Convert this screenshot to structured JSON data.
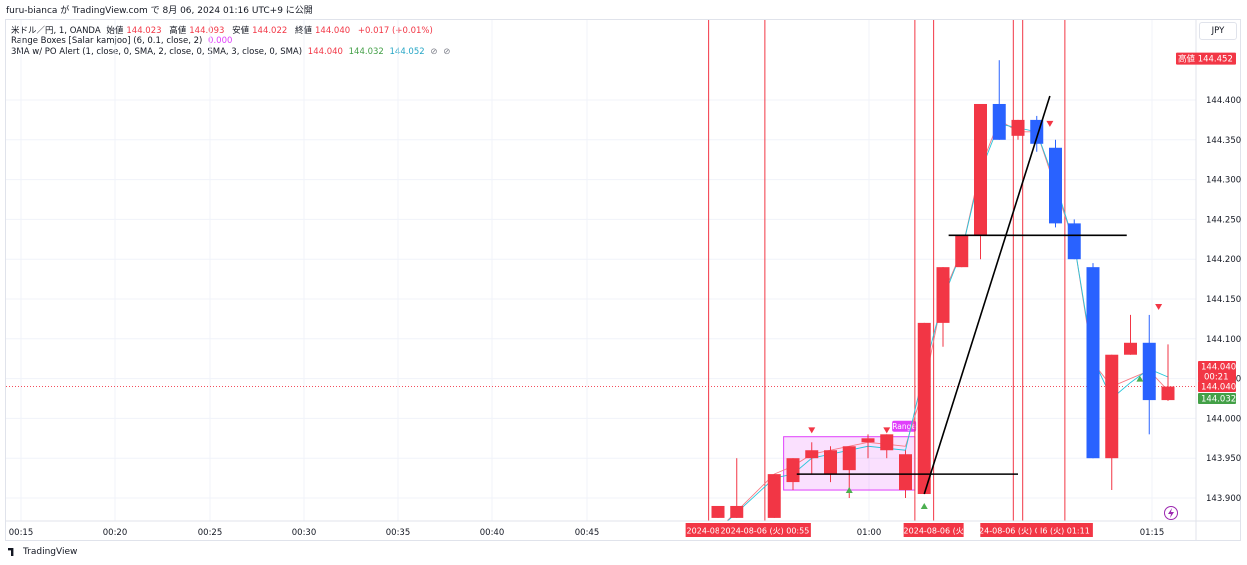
{
  "header": {
    "publish_line": "furu-bianca が TradingView.com で 8月 06, 2024 01:16 UTC+9 に公開"
  },
  "legend": {
    "main": {
      "label": "米ドル／円, 1, OANDA",
      "open_label": "始値",
      "open": "144.023",
      "high_label": "高値",
      "high": "144.093",
      "low_label": "安値",
      "low": "144.022",
      "close_label": "終値",
      "close": "144.040",
      "change": "+0.017 (+0.01%)"
    },
    "indicator1": {
      "label": "Range Boxes [Salar kamjoo] (6, 0.1, close, 2)",
      "value": "0.000"
    },
    "indicator2": {
      "label": "3MA w/ PO Alert (1, close, 0, SMA, 2, close, 0, SMA, 3, close, 0, SMA)",
      "v1": "144.040",
      "v2": "144.032",
      "v3": "144.052"
    }
  },
  "currency": "JPY",
  "footer": {
    "brand": "TradingView"
  },
  "colors": {
    "up": "#2962ff",
    "down": "#f23645",
    "ma_teal": "#26c6da",
    "range_box": "#e040fb",
    "signal_up": "#4caf50",
    "signal_down": "#f23645"
  },
  "chart_data": {
    "type": "candlestick",
    "symbol": "USDJPY",
    "timeframe": "1",
    "x_ticks": [
      "00:15",
      "00:20",
      "00:25",
      "00:30",
      "00:35",
      "00:40",
      "00:45",
      "01:00",
      "01:15"
    ],
    "y_ticks": [
      "143.900",
      "143.950",
      "144.000",
      "144.050",
      "144.100",
      "144.150",
      "144.200",
      "144.250",
      "144.300",
      "144.350",
      "144.400"
    ],
    "ylim": [
      143.875,
      144.48
    ],
    "candles": [
      {
        "idx": 0,
        "open": 143.875,
        "high": 143.89,
        "low": 143.875,
        "close": 143.89
      },
      {
        "idx": 1,
        "open": 143.875,
        "high": 143.95,
        "low": 143.875,
        "close": 143.89
      },
      {
        "idx": 3,
        "open": 143.875,
        "high": 143.93,
        "low": 143.875,
        "close": 143.93
      },
      {
        "idx": 4,
        "open": 143.92,
        "high": 143.95,
        "low": 143.91,
        "close": 143.95
      },
      {
        "idx": 5,
        "open": 143.95,
        "high": 143.97,
        "low": 143.93,
        "close": 143.96
      },
      {
        "idx": 6,
        "open": 143.93,
        "high": 143.965,
        "low": 143.92,
        "close": 143.96
      },
      {
        "idx": 7,
        "open": 143.935,
        "high": 143.965,
        "low": 143.9,
        "close": 143.965
      },
      {
        "idx": 8,
        "open": 143.97,
        "high": 143.98,
        "low": 143.95,
        "close": 143.975
      },
      {
        "idx": 9,
        "open": 143.96,
        "high": 143.98,
        "low": 143.95,
        "close": 143.98
      },
      {
        "idx": 10,
        "open": 143.91,
        "high": 143.96,
        "low": 143.9,
        "close": 143.955
      },
      {
        "idx": 11,
        "open": 143.905,
        "high": 144.12,
        "low": 143.905,
        "close": 144.12
      },
      {
        "idx": 12,
        "open": 144.12,
        "high": 144.19,
        "low": 144.09,
        "close": 144.19
      },
      {
        "idx": 13,
        "open": 144.19,
        "high": 144.23,
        "low": 144.19,
        "close": 144.23
      },
      {
        "idx": 14,
        "open": 144.23,
        "high": 144.395,
        "low": 144.2,
        "close": 144.395
      },
      {
        "idx": 15,
        "open": 144.395,
        "high": 144.45,
        "low": 144.35,
        "close": 144.35
      },
      {
        "idx": 16,
        "open": 144.355,
        "high": 144.375,
        "low": 144.35,
        "close": 144.375
      },
      {
        "idx": 17,
        "open": 144.375,
        "high": 144.38,
        "low": 144.335,
        "close": 144.345
      },
      {
        "idx": 18,
        "open": 144.34,
        "high": 144.35,
        "low": 144.24,
        "close": 144.245
      },
      {
        "idx": 19,
        "open": 144.245,
        "high": 144.25,
        "low": 144.2,
        "close": 144.2
      },
      {
        "idx": 20,
        "open": 144.19,
        "high": 144.195,
        "low": 143.95,
        "close": 143.95
      },
      {
        "idx": 21,
        "open": 143.95,
        "high": 144.08,
        "low": 143.91,
        "close": 144.08
      },
      {
        "idx": 22,
        "open": 144.08,
        "high": 144.13,
        "low": 144.08,
        "close": 144.095
      },
      {
        "idx": 23,
        "open": 144.095,
        "high": 144.13,
        "low": 143.98,
        "close": 144.023
      },
      {
        "idx": 24,
        "open": 144.023,
        "high": 144.093,
        "low": 144.022,
        "close": 144.04
      }
    ],
    "ma_teal": [
      [
        0,
        143.86
      ],
      [
        3,
        143.925
      ],
      [
        4,
        143.93
      ],
      [
        5,
        143.95
      ],
      [
        6,
        143.955
      ],
      [
        8,
        143.965
      ],
      [
        10,
        143.96
      ],
      [
        11,
        144.06
      ],
      [
        12,
        144.15
      ],
      [
        13,
        144.21
      ],
      [
        14,
        144.31
      ],
      [
        15,
        144.37
      ],
      [
        16,
        144.365
      ],
      [
        17,
        144.36
      ],
      [
        18,
        144.295
      ],
      [
        19,
        144.22
      ],
      [
        20,
        144.075
      ],
      [
        21,
        144.025
      ],
      [
        22,
        144.045
      ],
      [
        23,
        144.062
      ],
      [
        24,
        144.052
      ]
    ],
    "ma_red": [
      [
        0,
        143.86
      ],
      [
        3,
        143.93
      ],
      [
        4,
        143.94
      ],
      [
        5,
        143.955
      ],
      [
        6,
        143.96
      ],
      [
        8,
        143.97
      ],
      [
        10,
        143.965
      ],
      [
        11,
        144.04
      ],
      [
        12,
        144.155
      ],
      [
        13,
        144.21
      ],
      [
        14,
        144.315
      ],
      [
        15,
        144.375
      ],
      [
        16,
        144.36
      ],
      [
        17,
        144.36
      ],
      [
        18,
        144.29
      ],
      [
        19,
        144.22
      ],
      [
        20,
        144.07
      ],
      [
        21,
        144.04
      ],
      [
        22,
        144.05
      ],
      [
        23,
        144.06
      ],
      [
        24,
        144.035
      ]
    ],
    "range_box": {
      "label": "Range",
      "from_idx": 3.5,
      "to_idx": 10.5,
      "top": 143.977,
      "bottom": 143.91
    },
    "current_price_line": 144.04,
    "vertical_markers_idx": [
      -0.5,
      2.5,
      10.5,
      11.5,
      15.75,
      16.25,
      18.5
    ],
    "trendlines": [
      {
        "from": [
          4.2,
          143.93
        ],
        "to": [
          16,
          143.93
        ]
      },
      {
        "from": [
          11,
          143.905
        ],
        "to": [
          17.7,
          144.405
        ]
      },
      {
        "from": [
          12.3,
          144.23
        ],
        "to": [
          21.8,
          144.23
        ]
      }
    ],
    "signals": [
      {
        "idx": 5,
        "dir": "down",
        "price": 143.985
      },
      {
        "idx": 9,
        "dir": "down",
        "price": 143.985
      },
      {
        "idx": 7,
        "dir": "up",
        "price": 143.91
      },
      {
        "idx": 11,
        "dir": "up",
        "price": 143.89
      },
      {
        "idx": 17.7,
        "dir": "down",
        "price": 144.37
      },
      {
        "idx": 22.5,
        "dir": "up",
        "price": 144.05
      },
      {
        "idx": 23.5,
        "dir": "down",
        "price": 144.14
      }
    ],
    "price_tags": [
      {
        "text": "高値",
        "value": "144.452",
        "price": 144.452,
        "bg": "#f23645"
      },
      {
        "text": "",
        "value": "144.052",
        "price": 144.052,
        "bg": "#26c6da"
      },
      {
        "text": "",
        "value": "144.040",
        "sub": "00:21",
        "price": 144.03,
        "bg": "#f23645"
      },
      {
        "text": "",
        "value": "144.040",
        "price": 144.04,
        "bg": "#f23645",
        "offset": 24
      },
      {
        "text": "",
        "value": "144.032",
        "price": 144.032,
        "bg": "#43a047",
        "offset": 36
      }
    ],
    "time_tags": [
      {
        "text": "2024-08-06 (火",
        "idx": -0.5
      },
      {
        "text": "2024-08-06 (火)  00:55",
        "idx": 2.5
      },
      {
        "text": "202",
        "idx": 10.5
      },
      {
        "text": "2024-08-06 (火",
        "idx": 11.5
      },
      {
        "text": "2024-08-06 (火)  01:08",
        "idx": 15.75
      },
      {
        "text": "I6 (火)  01:11",
        "idx": 18.5
      }
    ]
  }
}
